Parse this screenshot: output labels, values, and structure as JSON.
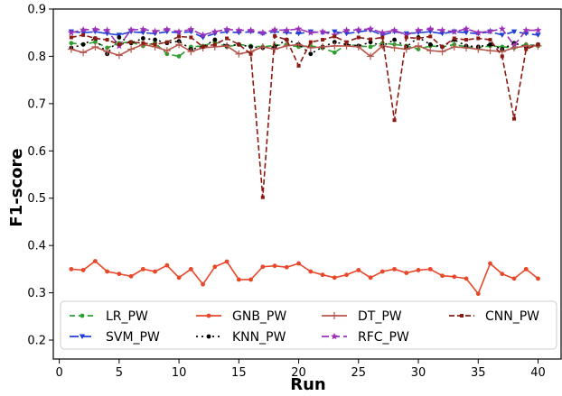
{
  "chart_data": {
    "type": "line",
    "title": "",
    "xlabel": "Run",
    "ylabel": "F1-score",
    "xlim": [
      -0.5,
      42
    ],
    "ylim": [
      0.16,
      0.9
    ],
    "xticks": [
      0,
      5,
      10,
      15,
      20,
      25,
      30,
      35,
      40
    ],
    "yticks": [
      0.2,
      0.3,
      0.4,
      0.5,
      0.6,
      0.7,
      0.8,
      0.9
    ],
    "grid": false,
    "legend_position": "lower-center",
    "x": [
      1,
      2,
      3,
      4,
      5,
      6,
      7,
      8,
      9,
      10,
      11,
      12,
      13,
      14,
      15,
      16,
      17,
      18,
      19,
      20,
      21,
      22,
      23,
      24,
      25,
      26,
      27,
      28,
      29,
      30,
      31,
      32,
      33,
      34,
      35,
      36,
      37,
      38,
      39,
      40
    ],
    "series": [
      {
        "name": "LR_PW",
        "color": "#2ca02c",
        "dash": "6,4",
        "marker": "dot",
        "values": [
          0.828,
          0.825,
          0.83,
          0.818,
          0.828,
          0.83,
          0.822,
          0.828,
          0.805,
          0.8,
          0.82,
          0.822,
          0.83,
          0.82,
          0.825,
          0.822,
          0.82,
          0.823,
          0.825,
          0.82,
          0.822,
          0.818,
          0.808,
          0.825,
          0.822,
          0.82,
          0.828,
          0.825,
          0.822,
          0.815,
          0.822,
          0.82,
          0.825,
          0.82,
          0.818,
          0.822,
          0.82,
          0.818,
          0.825,
          0.822
        ]
      },
      {
        "name": "SVM_PW",
        "color": "#1f3fd6",
        "dash": "10,4",
        "marker": "tri",
        "values": [
          0.852,
          0.85,
          0.852,
          0.848,
          0.845,
          0.852,
          0.85,
          0.848,
          0.852,
          0.85,
          0.852,
          0.84,
          0.848,
          0.852,
          0.85,
          0.852,
          0.848,
          0.852,
          0.85,
          0.848,
          0.852,
          0.85,
          0.852,
          0.848,
          0.852,
          0.855,
          0.845,
          0.852,
          0.848,
          0.85,
          0.852,
          0.848,
          0.852,
          0.85,
          0.848,
          0.852,
          0.845,
          0.852,
          0.848,
          0.845
        ]
      },
      {
        "name": "KNN_PW",
        "color": "#000000",
        "dash": "2,4",
        "marker": "dot",
        "values": [
          0.818,
          0.825,
          0.838,
          0.805,
          0.84,
          0.828,
          0.838,
          0.835,
          0.828,
          0.832,
          0.815,
          0.82,
          0.835,
          0.822,
          0.825,
          0.82,
          0.818,
          0.82,
          0.835,
          0.825,
          0.805,
          0.82,
          0.83,
          0.825,
          0.822,
          0.83,
          0.822,
          0.835,
          0.82,
          0.84,
          0.825,
          0.82,
          0.835,
          0.822,
          0.82,
          0.825,
          0.815,
          0.828,
          0.82,
          0.825
        ]
      },
      {
        "name": "GNB_PW",
        "color": "#e8472a",
        "dash": "",
        "marker": "dot",
        "values": [
          0.35,
          0.348,
          0.367,
          0.345,
          0.34,
          0.335,
          0.35,
          0.345,
          0.358,
          0.332,
          0.35,
          0.318,
          0.355,
          0.366,
          0.328,
          0.328,
          0.355,
          0.357,
          0.354,
          0.362,
          0.345,
          0.338,
          0.332,
          0.338,
          0.348,
          0.332,
          0.345,
          0.35,
          0.342,
          0.348,
          0.35,
          0.336,
          0.334,
          0.33,
          0.298,
          0.362,
          0.34,
          0.33,
          0.35,
          0.33
        ]
      },
      {
        "name": "RFC_PW",
        "color": "#9b30b8",
        "dash": "8,4",
        "marker": "star",
        "values": [
          0.85,
          0.856,
          0.857,
          0.855,
          0.822,
          0.856,
          0.857,
          0.853,
          0.857,
          0.852,
          0.857,
          0.845,
          0.852,
          0.857,
          0.855,
          0.855,
          0.85,
          0.856,
          0.855,
          0.858,
          0.85,
          0.852,
          0.845,
          0.855,
          0.856,
          0.858,
          0.85,
          0.855,
          0.845,
          0.855,
          0.858,
          0.855,
          0.852,
          0.858,
          0.85,
          0.853,
          0.858,
          0.823,
          0.855,
          0.855
        ]
      },
      {
        "name": "DT_PW",
        "color": "#b5574d",
        "dash": "",
        "marker": "plus",
        "values": [
          0.815,
          0.808,
          0.82,
          0.81,
          0.802,
          0.815,
          0.825,
          0.82,
          0.812,
          0.825,
          0.81,
          0.818,
          0.82,
          0.822,
          0.805,
          0.81,
          0.82,
          0.815,
          0.822,
          0.825,
          0.818,
          0.82,
          0.822,
          0.822,
          0.82,
          0.8,
          0.822,
          0.818,
          0.815,
          0.822,
          0.812,
          0.81,
          0.82,
          0.818,
          0.815,
          0.812,
          0.81,
          0.818,
          0.822,
          0.822
        ]
      },
      {
        "name": "CNN_PW",
        "color": "#8b1a10",
        "dash": "6,3",
        "marker": "square",
        "values": [
          0.84,
          0.845,
          0.838,
          0.835,
          0.825,
          0.83,
          0.828,
          0.825,
          0.83,
          0.842,
          0.84,
          0.82,
          0.825,
          0.838,
          0.825,
          0.805,
          0.502,
          0.843,
          0.835,
          0.78,
          0.83,
          0.835,
          0.842,
          0.83,
          0.84,
          0.836,
          0.84,
          0.665,
          0.84,
          0.838,
          0.842,
          0.82,
          0.838,
          0.835,
          0.838,
          0.835,
          0.8,
          0.668,
          0.815,
          0.825
        ]
      }
    ],
    "legend_order": [
      "LR_PW",
      "GNB_PW",
      "DT_PW",
      "CNN_PW",
      "SVM_PW",
      "KNN_PW",
      "RFC_PW"
    ]
  }
}
